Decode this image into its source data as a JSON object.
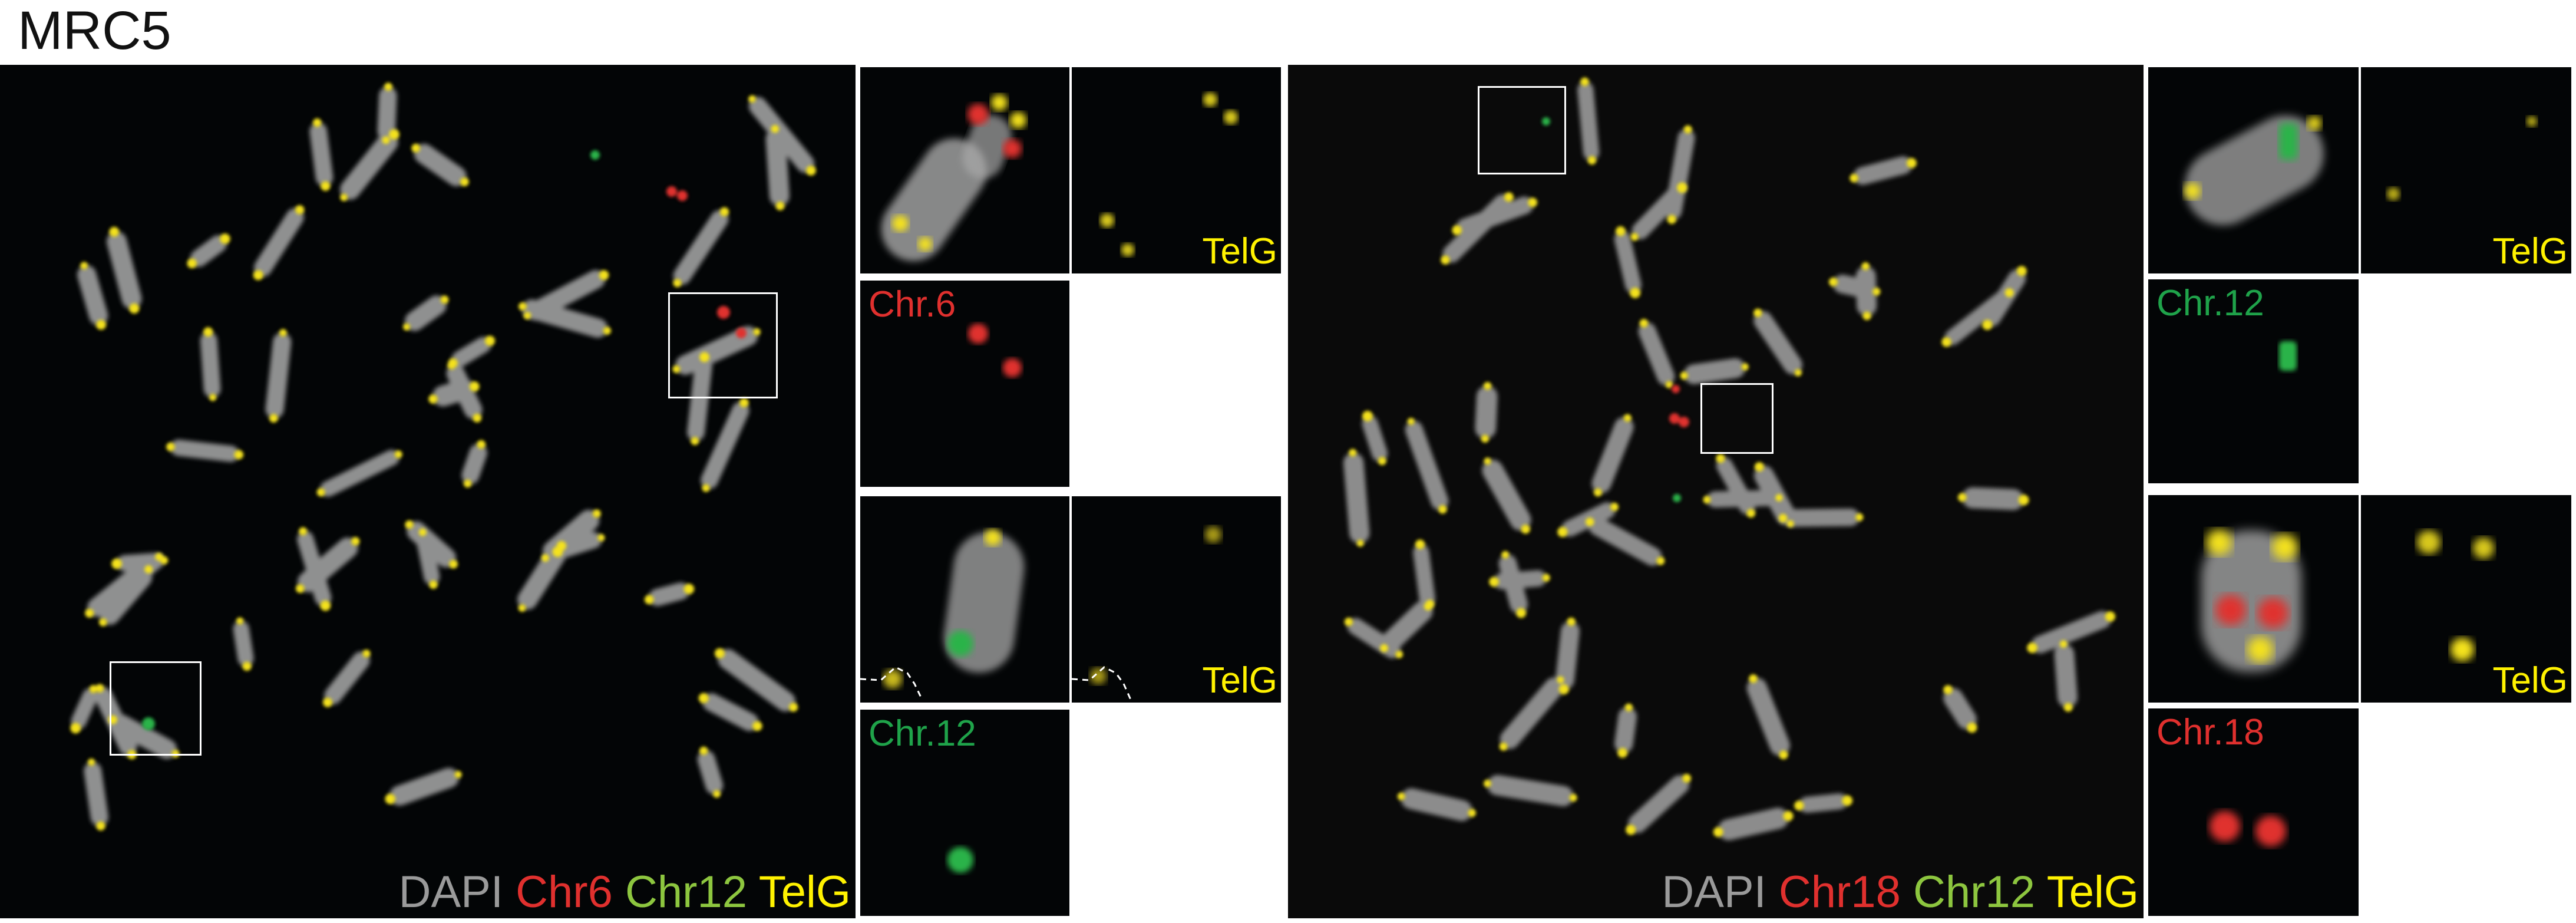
{
  "figure": {
    "title": "MRC5"
  },
  "panel_a": {
    "main_legend": [
      {
        "text": "DAPI",
        "color": "#9a9a9a"
      },
      {
        "text": "Chr6",
        "color": "#e0302e"
      },
      {
        "text": "Chr12",
        "color": "#8dc63f"
      },
      {
        "text": "TelG",
        "color": "#fff200"
      }
    ],
    "inset_top_telg_label": "TelG",
    "inset_top_chr_label": "Chr.6",
    "inset_bottom_telg_label": "TelG",
    "inset_bottom_chr_label": "Chr.12"
  },
  "panel_b": {
    "main_legend": [
      {
        "text": "DAPI",
        "color": "#9a9a9a"
      },
      {
        "text": "Chr18",
        "color": "#e0302e"
      },
      {
        "text": "Chr12",
        "color": "#8dc63f"
      },
      {
        "text": "TelG",
        "color": "#fff200"
      }
    ],
    "inset_top_telg_label": "TelG",
    "inset_top_chr_label": "Chr.12",
    "inset_bottom_telg_label": "TelG",
    "inset_bottom_chr_label": "Chr.18"
  },
  "colors": {
    "chr6_red": "#e0302e",
    "chr18_red": "#e0302e",
    "chr12_green": "#1fa34a",
    "telg_yellow": "#fff200",
    "dapi_gray": "#9a9a9a"
  }
}
